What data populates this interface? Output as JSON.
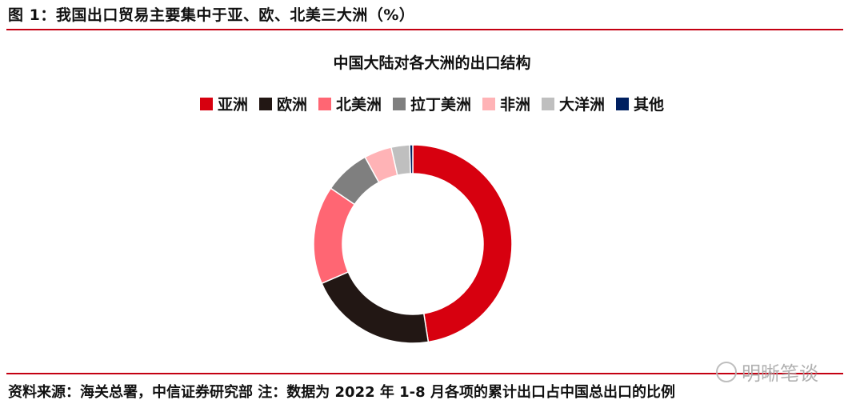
{
  "figure_title": "图 1：我国出口贸易主要集中于亚、欧、北美三大洲（%）",
  "source_note": "资料来源：海关总署，中信证券研究部 注：数据为 2022 年 1-8 月各项的累计出口占中国总出口的比例",
  "watermark": "明晰笔谈",
  "colors": {
    "accent_rule": "#c40012"
  },
  "chart_data": {
    "type": "pie",
    "subtype": "donut",
    "title": "中国大陆对各大洲的出口结构",
    "legend_position": "top",
    "series": [
      {
        "name": "亚洲",
        "value": 47.5,
        "color": "#d7000f"
      },
      {
        "name": "欧洲",
        "value": 21.0,
        "color": "#221714"
      },
      {
        "name": "北美洲",
        "value": 16.0,
        "color": "#ff6673"
      },
      {
        "name": "拉丁美洲",
        "value": 7.5,
        "color": "#7f7f7f"
      },
      {
        "name": "非洲",
        "value": 4.5,
        "color": "#ffb3b6"
      },
      {
        "name": "大洋洲",
        "value": 3.0,
        "color": "#bfbfbf"
      },
      {
        "name": "其他",
        "value": 0.5,
        "color": "#002060"
      }
    ]
  }
}
